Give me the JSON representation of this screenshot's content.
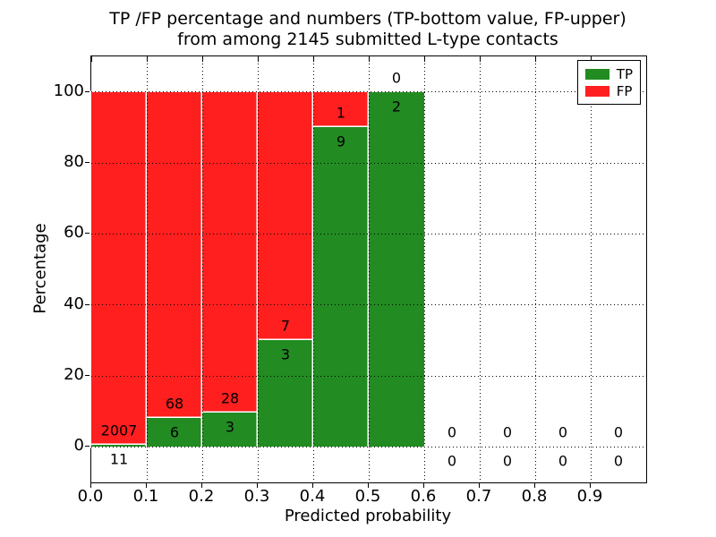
{
  "figure": {
    "title_line1": "TP /FP percentage and numbers (TP-bottom value, FP-upper)",
    "title_line2": "from among 2145 submitted L-type contacts"
  },
  "colors": {
    "tp": "#228b22",
    "fp": "#ff1f1f",
    "grid": "#000000",
    "background": "#ffffff",
    "text": "#000000"
  },
  "chart_data": {
    "type": "bar",
    "stacked": true,
    "title": "TP /FP percentage and numbers (TP-bottom value, FP-upper) from among 2145 submitted L-type contacts",
    "xlabel": "Predicted probability",
    "ylabel": "Percentage",
    "xlim": [
      0.0,
      1.0
    ],
    "ylim": [
      -10,
      110
    ],
    "xtick_labels": [
      "0.0",
      "0.1",
      "0.2",
      "0.3",
      "0.4",
      "0.5",
      "0.6",
      "0.7",
      "0.8",
      "0.9"
    ],
    "xtick_values": [
      0.0,
      0.1,
      0.2,
      0.3,
      0.4,
      0.5,
      0.6,
      0.7,
      0.8,
      0.9
    ],
    "ytick_labels": [
      "0",
      "20",
      "40",
      "60",
      "80",
      "100"
    ],
    "ytick_values": [
      0,
      20,
      40,
      60,
      80,
      100
    ],
    "grid": true,
    "grid_style": "dotted",
    "total_contacts": 2145,
    "bin_width": 0.1,
    "bins": [
      {
        "x0": 0.0,
        "x1": 0.1,
        "tp": 11,
        "fp": 2007,
        "tp_percent": 0.545
      },
      {
        "x0": 0.1,
        "x1": 0.2,
        "tp": 6,
        "fp": 68,
        "tp_percent": 8.108
      },
      {
        "x0": 0.2,
        "x1": 0.3,
        "tp": 3,
        "fp": 28,
        "tp_percent": 9.677
      },
      {
        "x0": 0.3,
        "x1": 0.4,
        "tp": 3,
        "fp": 7,
        "tp_percent": 30.0
      },
      {
        "x0": 0.4,
        "x1": 0.5,
        "tp": 9,
        "fp": 1,
        "tp_percent": 90.0
      },
      {
        "x0": 0.5,
        "x1": 0.6,
        "tp": 2,
        "fp": 0,
        "tp_percent": 100.0
      },
      {
        "x0": 0.6,
        "x1": 0.7,
        "tp": 0,
        "fp": 0,
        "tp_percent": 0.0
      },
      {
        "x0": 0.7,
        "x1": 0.8,
        "tp": 0,
        "fp": 0,
        "tp_percent": 0.0
      },
      {
        "x0": 0.8,
        "x1": 0.9,
        "tp": 0,
        "fp": 0,
        "tp_percent": 0.0
      },
      {
        "x0": 0.9,
        "x1": 1.0,
        "tp": 0,
        "fp": 0,
        "tp_percent": 0.0
      }
    ],
    "legend": {
      "position": "upper right",
      "entries": [
        {
          "label": "TP",
          "color": "#228b22"
        },
        {
          "label": "FP",
          "color": "#ff1f1f"
        }
      ]
    },
    "label_convention": "TP-bottom value, FP-upper"
  }
}
